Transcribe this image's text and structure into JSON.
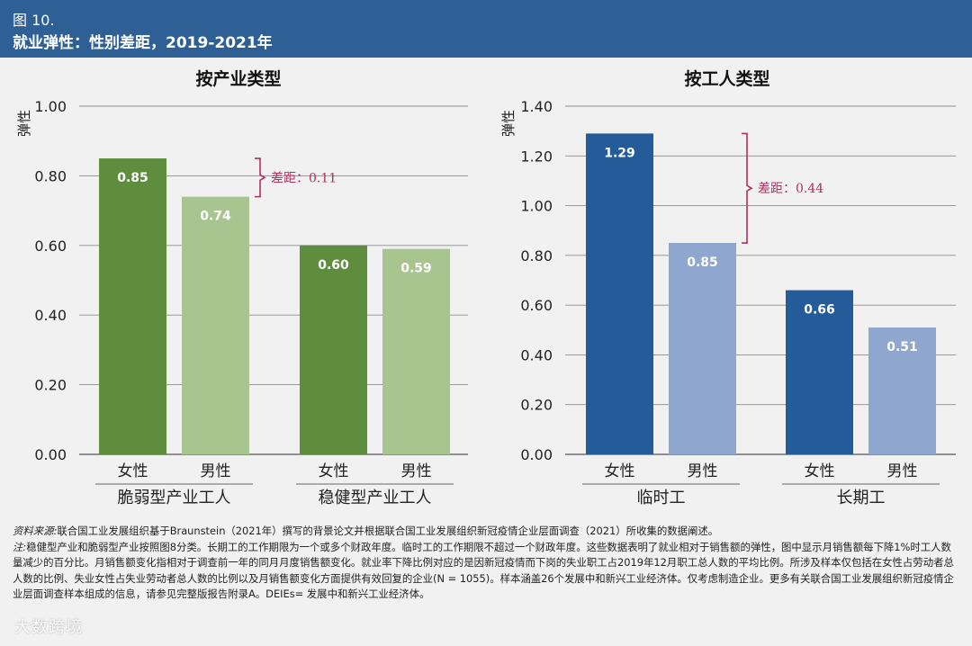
{
  "header": {
    "fig_label": "图 10.",
    "title": "就业弹性：性别差距，2019-2021年"
  },
  "notes": {
    "source_label": "资料来源:",
    "source_text": "联合国工业发展组织基于Braunstein（2021年）撰写的背景论文并根据联合国工业发展组织新冠疫情企业层面调查（2021）所收集的数据阐述。",
    "note_label": "注:",
    "note_text": "稳健型产业和脆弱型产业按照图8分类。长期工的工作期限为一个或多个财政年度。临时工的工作期限不超过一个财政年度。这些数据表明了就业相对于销售额的弹性，图中显示月销售额每下降1%时工人数量减少的百分比。月销售额变化指相对于调查前一年的同月月度销售额变化。就业率下降比例对应的是因新冠疫情而下岗的失业职工占2019年12月职工总人数的平均比例。所涉及样本仅包括在女性占劳动者总人数的比例、失业女性占失业劳动者总人数的比例以及月销售额变化方面提供有效回复的企业(N = 1055)。样本涵盖26个发展中和新兴工业经济体。仅考虑制造企业。更多有关联合国工业发展组织新冠疫情企业层面调查样本组成的信息，请参见完整版报告附录A。DEIEs= 发展中和新兴工业经济体。"
  },
  "watermark": "大数跨境",
  "chart_data": [
    {
      "type": "bar",
      "title": "按产业类型",
      "ylabel": "弹性",
      "ylim": [
        0,
        1.0
      ],
      "yticks": [
        0,
        0.2,
        0.4,
        0.6,
        0.8,
        1.0
      ],
      "ytick_labels": [
        "0.00",
        "0.20",
        "0.40",
        "0.60",
        "0.80",
        "1.00"
      ],
      "groups": [
        {
          "label": "脆弱型产业工人",
          "bars": [
            {
              "label": "女性",
              "value": 0.85,
              "value_label": "0.85",
              "color": "#5e8d3d"
            },
            {
              "label": "男性",
              "value": 0.74,
              "value_label": "0.74",
              "color": "#a9c58f"
            }
          ]
        },
        {
          "label": "稳健型产业工人",
          "bars": [
            {
              "label": "女性",
              "value": 0.6,
              "value_label": "0.60",
              "color": "#5e8d3d"
            },
            {
              "label": "男性",
              "value": 0.59,
              "value_label": "0.59",
              "color": "#a9c58f"
            }
          ]
        }
      ],
      "annotation": {
        "group": 0,
        "text": "差距：0.11",
        "color": "#b03060"
      }
    },
    {
      "type": "bar",
      "title": "按工人类型",
      "ylabel": "弹性",
      "ylim": [
        0,
        1.4
      ],
      "yticks": [
        0,
        0.2,
        0.4,
        0.6,
        0.8,
        1.0,
        1.2,
        1.4
      ],
      "ytick_labels": [
        "0.00",
        "0.20",
        "0.40",
        "0.60",
        "0.80",
        "1.00",
        "1.20",
        "1.40"
      ],
      "groups": [
        {
          "label": "临时工",
          "bars": [
            {
              "label": "女性",
              "value": 1.29,
              "value_label": "1.29",
              "color": "#245c9a"
            },
            {
              "label": "男性",
              "value": 0.85,
              "value_label": "0.85",
              "color": "#8fa6cf"
            }
          ]
        },
        {
          "label": "长期工",
          "bars": [
            {
              "label": "女性",
              "value": 0.66,
              "value_label": "0.66",
              "color": "#245c9a"
            },
            {
              "label": "男性",
              "value": 0.51,
              "value_label": "0.51",
              "color": "#8fa6cf"
            }
          ]
        }
      ],
      "annotation": {
        "group": 0,
        "text": "差距：0.44",
        "color": "#b03060"
      }
    }
  ]
}
